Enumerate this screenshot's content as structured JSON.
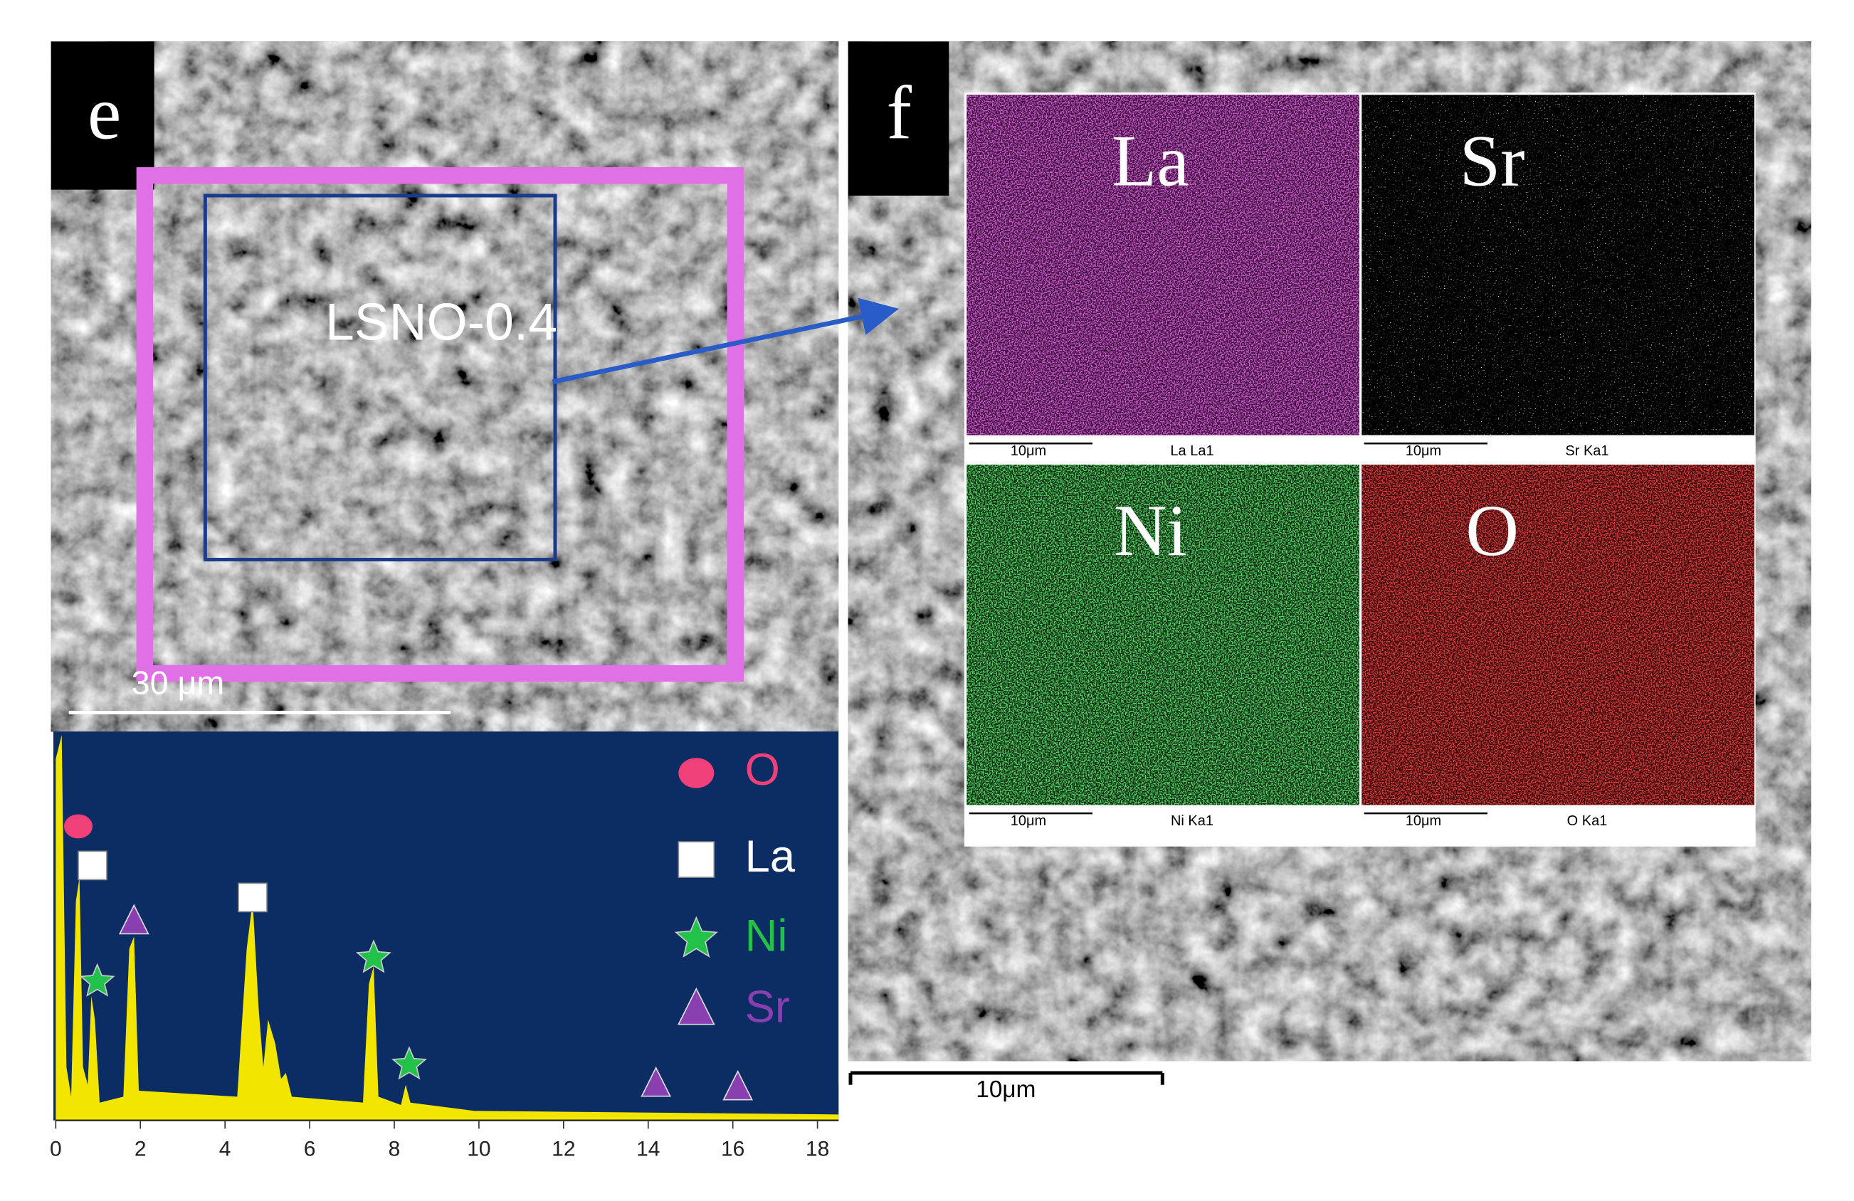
{
  "panel_e": {
    "label": "e",
    "sample": "LSNO-0.4",
    "scale_bar": "30 μm",
    "spectrum": {
      "xlim": [
        0,
        18.5
      ],
      "xticks": [
        0,
        2,
        4,
        6,
        8,
        10,
        12,
        14,
        16,
        18
      ],
      "legend": [
        {
          "name": "O",
          "color": "#f0407a"
        },
        {
          "name": "La",
          "color": "#ffffff"
        },
        {
          "name": "Ni",
          "color": "#22c24a"
        },
        {
          "name": "Sr",
          "color": "#8a3fb0"
        }
      ]
    }
  },
  "panel_f": {
    "label": "f",
    "scale_bar": "10μm",
    "maps": [
      {
        "element": "La",
        "scale_bar": "10μm",
        "line": "La La1"
      },
      {
        "element": "Sr",
        "scale_bar": "10μm",
        "line": "Sr Ka1"
      },
      {
        "element": "Ni",
        "scale_bar": "10μm",
        "line": "Ni Ka1"
      },
      {
        "element": "O",
        "scale_bar": "10μm",
        "line": "O Ka1"
      }
    ]
  }
}
